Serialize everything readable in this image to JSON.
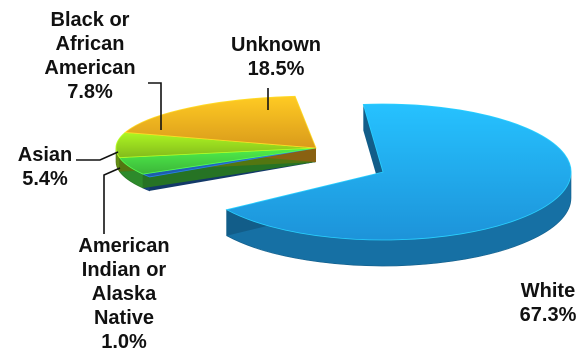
{
  "chart_data": {
    "type": "pie",
    "title": "",
    "legend": "none",
    "slices": [
      {
        "label": "White",
        "value": 67.3,
        "value_label": "67.3%",
        "color": "#1e9be4"
      },
      {
        "label": "American Indian or Alaska Native",
        "value": 1.0,
        "value_label": "1.0%",
        "color": "#1f5fae"
      },
      {
        "label": "Asian",
        "value": 5.4,
        "value_label": "5.4%",
        "color": "#3fbf3c"
      },
      {
        "label": "Black or African American",
        "value": 7.8,
        "value_label": "7.8%",
        "color": "#8ac51c"
      },
      {
        "label": "Unknown",
        "value": 18.5,
        "value_label": "18.5%",
        "color": "#e4a21c"
      }
    ],
    "label_lines": {
      "White": [
        "White"
      ],
      "American Indian or Alaska Native": [
        "American",
        "Indian or",
        "Alaska",
        "Native"
      ],
      "Asian": [
        "Asian"
      ],
      "Black or African American": [
        "Black or",
        "African",
        "American"
      ],
      "Unknown": [
        "Unknown"
      ]
    }
  }
}
